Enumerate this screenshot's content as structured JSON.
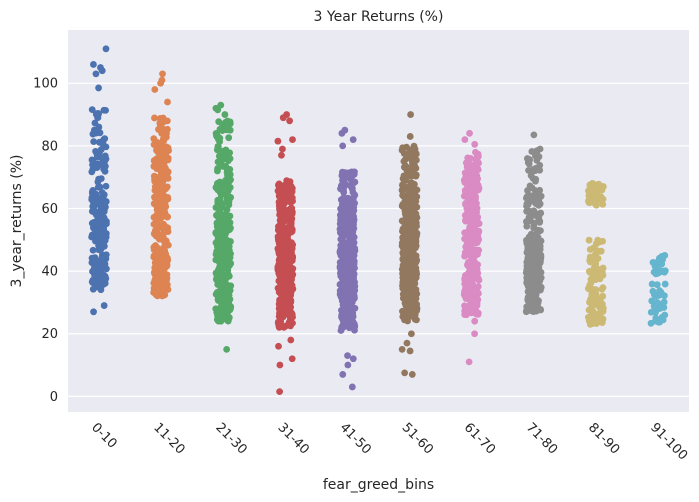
{
  "chart_data": {
    "type": "scatter",
    "plot_style": "strip",
    "title": "3 Year Returns (%)",
    "xlabel": "fear_greed_bins",
    "ylabel": "3_year_returns (%)",
    "ylim": [
      -5,
      117
    ],
    "yticks": [
      0,
      20,
      40,
      60,
      80,
      100
    ],
    "grid": true,
    "legend": false,
    "categories": [
      "0-10",
      "11-20",
      "21-30",
      "31-40",
      "41-50",
      "51-60",
      "61-70",
      "71-80",
      "81-90",
      "91-100"
    ],
    "series": [
      {
        "category": "0-10",
        "color": "#4c72b0",
        "n": 220,
        "bands": [
          [
            34,
            44,
            0.3
          ],
          [
            44,
            58,
            0.25
          ],
          [
            58,
            66,
            0.2
          ],
          [
            66,
            92,
            0.25
          ]
        ],
        "outliers": [
          111,
          106,
          105,
          104,
          103,
          98.5,
          27,
          29
        ]
      },
      {
        "category": "11-20",
        "color": "#dd8452",
        "n": 270,
        "bands": [
          [
            32,
            48,
            0.35
          ],
          [
            48,
            62,
            0.25
          ],
          [
            62,
            80,
            0.3
          ],
          [
            80,
            90,
            0.1
          ]
        ],
        "outliers": [
          103,
          101,
          100,
          98,
          94,
          33
        ]
      },
      {
        "category": "21-30",
        "color": "#55a868",
        "n": 330,
        "bands": [
          [
            24,
            40,
            0.3
          ],
          [
            40,
            55,
            0.35
          ],
          [
            55,
            70,
            0.2
          ],
          [
            70,
            88,
            0.15
          ]
        ],
        "outliers": [
          93,
          92,
          91.5,
          90,
          15,
          24,
          24.5
        ]
      },
      {
        "category": "31-40",
        "color": "#c44e52",
        "n": 330,
        "bands": [
          [
            22,
            34,
            0.2
          ],
          [
            34,
            48,
            0.4
          ],
          [
            48,
            58,
            0.2
          ],
          [
            58,
            69,
            0.2
          ]
        ],
        "outliers": [
          90,
          89,
          88,
          82,
          81.5,
          79,
          77,
          18,
          16,
          12,
          10,
          1.5
        ]
      },
      {
        "category": "41-50",
        "color": "#8172b2",
        "n": 400,
        "bands": [
          [
            21,
            34,
            0.25
          ],
          [
            34,
            48,
            0.4
          ],
          [
            48,
            60,
            0.2
          ],
          [
            60,
            72,
            0.15
          ]
        ],
        "outliers": [
          85,
          84,
          82,
          80,
          13,
          12,
          10,
          7,
          3
        ]
      },
      {
        "category": "51-60",
        "color": "#937860",
        "n": 430,
        "bands": [
          [
            24,
            36,
            0.2
          ],
          [
            36,
            52,
            0.45
          ],
          [
            52,
            66,
            0.2
          ],
          [
            66,
            80,
            0.15
          ]
        ],
        "outliers": [
          90,
          83,
          20,
          17,
          15,
          14.5,
          7.5,
          7
        ]
      },
      {
        "category": "61-70",
        "color": "#da8bc3",
        "n": 300,
        "bands": [
          [
            26,
            34,
            0.2
          ],
          [
            34,
            50,
            0.3
          ],
          [
            50,
            66,
            0.3
          ],
          [
            66,
            78,
            0.2
          ]
        ],
        "outliers": [
          84,
          82,
          80.5,
          24,
          20,
          11
        ]
      },
      {
        "category": "71-80",
        "color": "#8c8c8c",
        "n": 300,
        "bands": [
          [
            27,
            36,
            0.25
          ],
          [
            36,
            50,
            0.45
          ],
          [
            50,
            65,
            0.2
          ],
          [
            65,
            79,
            0.1
          ]
        ],
        "outliers": [
          83.5
        ]
      },
      {
        "category": "81-90",
        "color": "#ccb974",
        "n": 150,
        "bands": [
          [
            23,
            30,
            0.25
          ],
          [
            30,
            42,
            0.3
          ],
          [
            42,
            50,
            0.15
          ],
          [
            61,
            68,
            0.3
          ]
        ],
        "outliers": [
          23
        ]
      },
      {
        "category": "91-100",
        "color": "#64b5cd",
        "n": 50,
        "bands": [
          [
            23,
            27,
            0.25
          ],
          [
            28,
            36,
            0.35
          ],
          [
            39,
            45,
            0.4
          ]
        ],
        "outliers": [
          45
        ]
      }
    ]
  }
}
